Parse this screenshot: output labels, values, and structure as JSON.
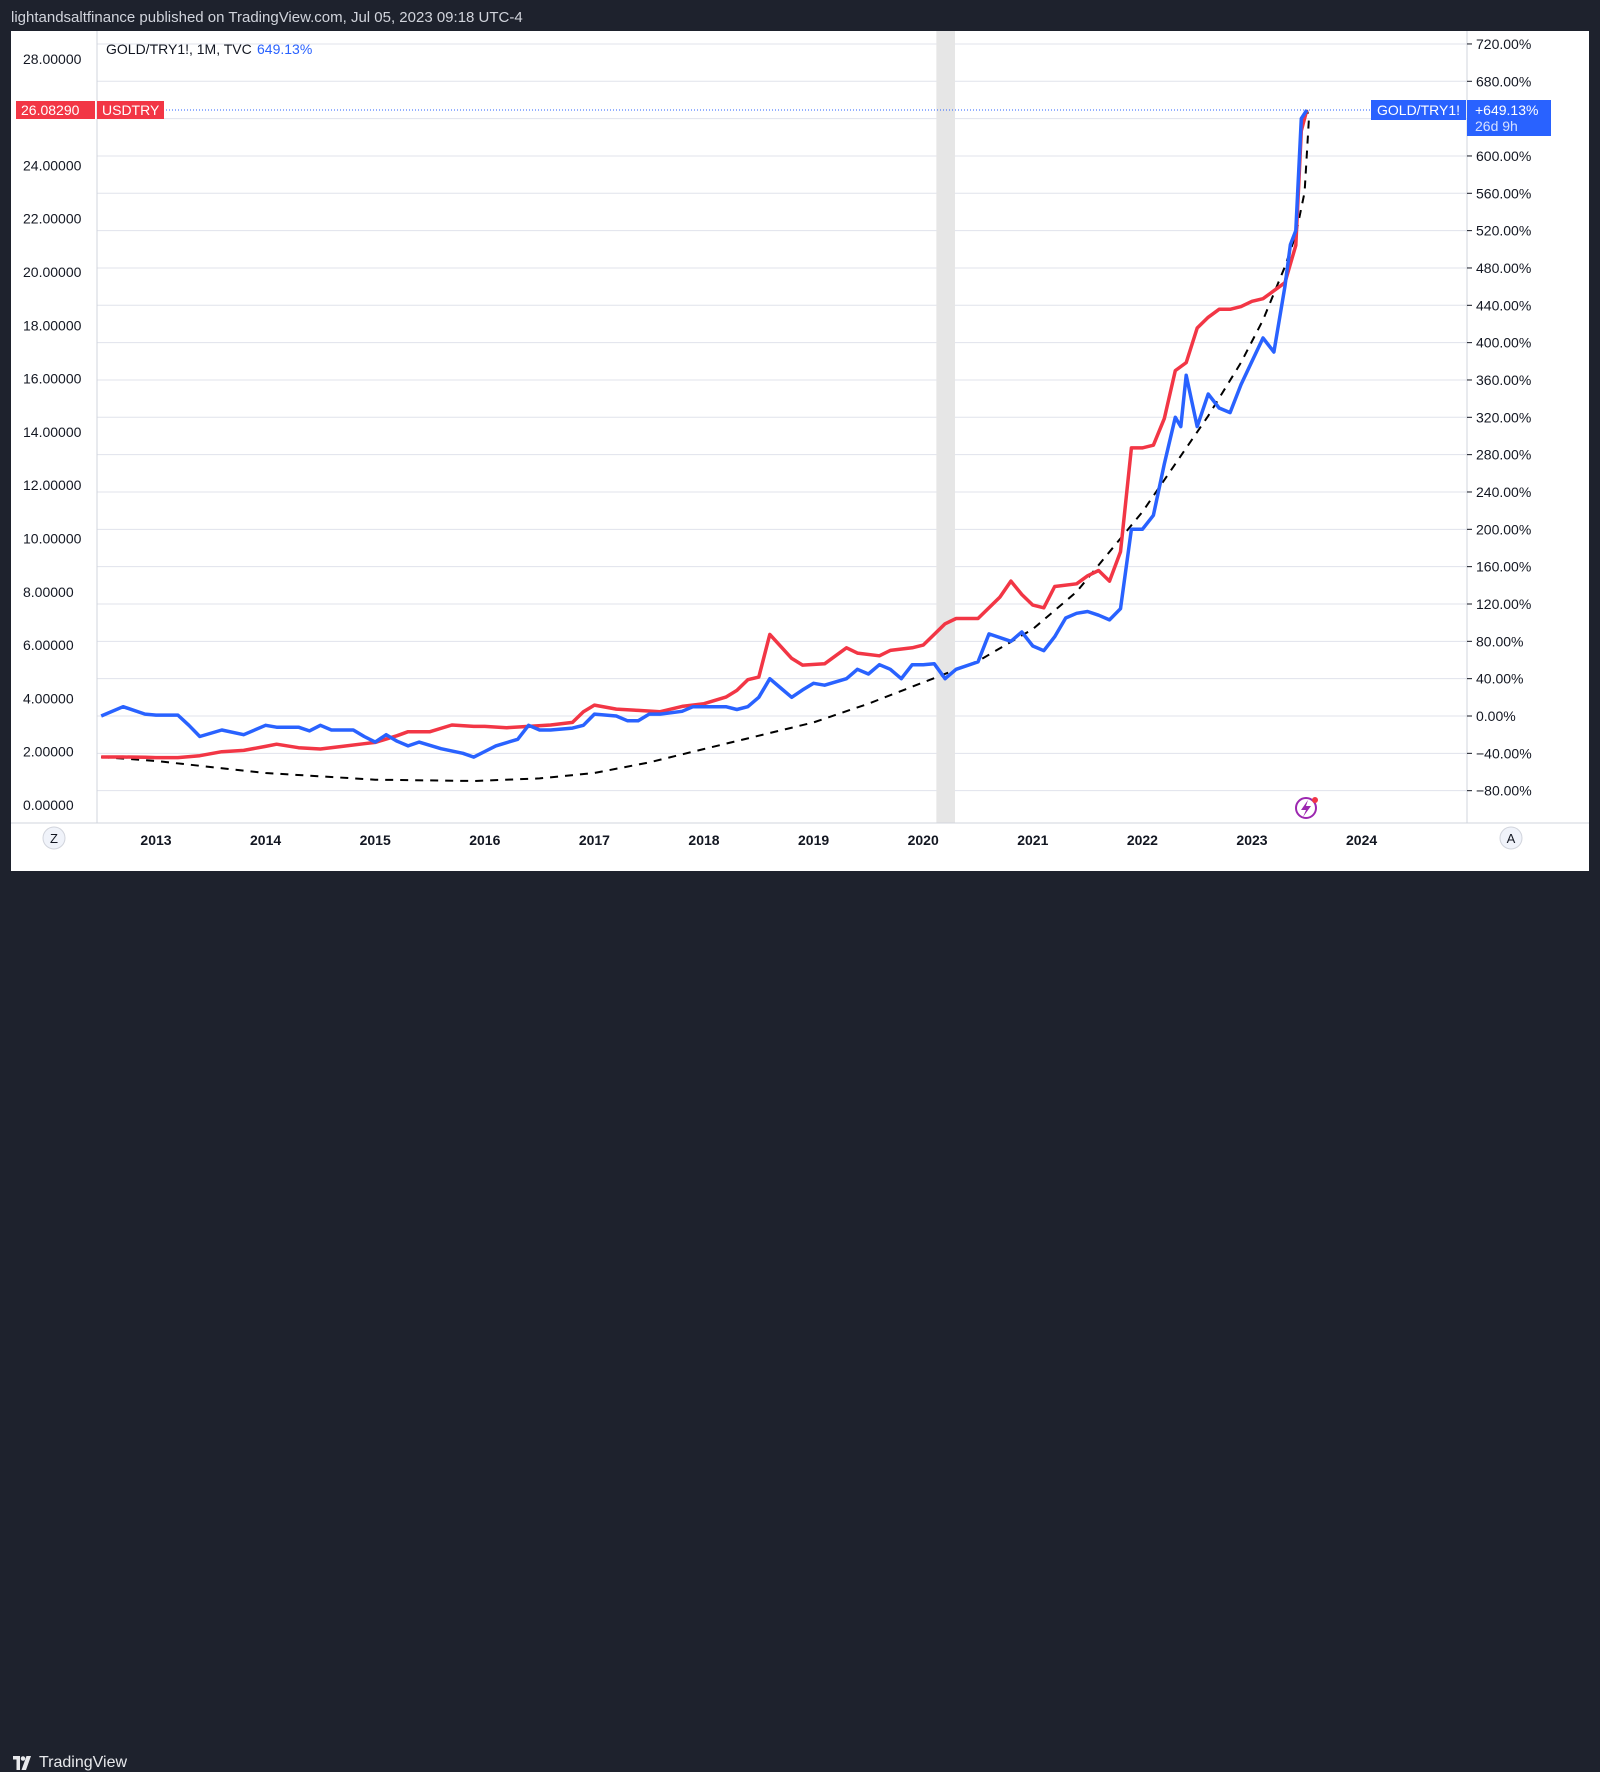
{
  "header": {
    "publisher_line": "lightandsaltfinance published on TradingView.com, Jul 05, 2023 09:18 UTC-4"
  },
  "footer": {
    "brand": "TradingView"
  },
  "legend": {
    "symbol": "GOLD/TRY1!, 1M, TVC",
    "change": "649.13%"
  },
  "buttons": {
    "left_scale": "Z",
    "auto_scale": "A"
  },
  "price_tags": {
    "usdtry_value": "26.08290",
    "usdtry_label": "USDTRY",
    "gold_label": "GOLD/TRY1!",
    "gold_change": "+649.13%",
    "gold_countdown": "26d 9h"
  },
  "colors": {
    "usdtry": "#f23645",
    "gold": "#2962ff",
    "curve": "#000000",
    "shade": "#e6e6e6"
  },
  "chart_data": {
    "type": "line",
    "left_axis": {
      "ticks": [
        "28.00000",
        "24.00000",
        "22.00000",
        "20.00000",
        "18.00000",
        "16.00000",
        "14.00000",
        "12.00000",
        "10.00000",
        "8.00000",
        "6.00000",
        "4.00000",
        "2.00000",
        "0.00000"
      ]
    },
    "right_axis": {
      "ticks": [
        "720.00%",
        "680.00%",
        "600.00%",
        "560.00%",
        "520.00%",
        "480.00%",
        "440.00%",
        "400.00%",
        "360.00%",
        "320.00%",
        "280.00%",
        "240.00%",
        "200.00%",
        "160.00%",
        "120.00%",
        "80.00%",
        "40.00%",
        "0.00%",
        "−40.00%",
        "−80.00%"
      ]
    },
    "x_ticks": [
      "2013",
      "2014",
      "2015",
      "2016",
      "2017",
      "2018",
      "2019",
      "2020",
      "2021",
      "2022",
      "2023",
      "2024"
    ],
    "xlim": [
      2012.5,
      2024.8
    ],
    "ylim_left": [
      0,
      28.5
    ],
    "shaded_period": [
      2020.12,
      2020.29
    ],
    "series": [
      {
        "name": "USDTRY",
        "axis": "left",
        "points": [
          [
            2012.5,
            1.8
          ],
          [
            2012.7,
            1.8
          ],
          [
            2012.9,
            1.79
          ],
          [
            2013.0,
            1.78
          ],
          [
            2013.2,
            1.78
          ],
          [
            2013.4,
            1.85
          ],
          [
            2013.6,
            2.0
          ],
          [
            2013.8,
            2.05
          ],
          [
            2014.0,
            2.2
          ],
          [
            2014.1,
            2.28
          ],
          [
            2014.3,
            2.15
          ],
          [
            2014.5,
            2.1
          ],
          [
            2014.7,
            2.2
          ],
          [
            2014.9,
            2.3
          ],
          [
            2015.0,
            2.35
          ],
          [
            2015.2,
            2.6
          ],
          [
            2015.3,
            2.75
          ],
          [
            2015.5,
            2.75
          ],
          [
            2015.7,
            3.0
          ],
          [
            2015.9,
            2.95
          ],
          [
            2016.0,
            2.95
          ],
          [
            2016.2,
            2.9
          ],
          [
            2016.4,
            2.95
          ],
          [
            2016.6,
            3.0
          ],
          [
            2016.8,
            3.1
          ],
          [
            2016.9,
            3.5
          ],
          [
            2017.0,
            3.75
          ],
          [
            2017.2,
            3.6
          ],
          [
            2017.4,
            3.55
          ],
          [
            2017.6,
            3.5
          ],
          [
            2017.8,
            3.7
          ],
          [
            2018.0,
            3.8
          ],
          [
            2018.2,
            4.05
          ],
          [
            2018.3,
            4.3
          ],
          [
            2018.4,
            4.7
          ],
          [
            2018.5,
            4.8
          ],
          [
            2018.6,
            6.4
          ],
          [
            2018.8,
            5.5
          ],
          [
            2018.9,
            5.25
          ],
          [
            2019.1,
            5.3
          ],
          [
            2019.3,
            5.9
          ],
          [
            2019.4,
            5.7
          ],
          [
            2019.6,
            5.6
          ],
          [
            2019.7,
            5.8
          ],
          [
            2019.9,
            5.9
          ],
          [
            2020.0,
            6.0
          ],
          [
            2020.2,
            6.8
          ],
          [
            2020.3,
            7.0
          ],
          [
            2020.5,
            7.0
          ],
          [
            2020.7,
            7.8
          ],
          [
            2020.8,
            8.4
          ],
          [
            2020.9,
            7.9
          ],
          [
            2021.0,
            7.5
          ],
          [
            2021.1,
            7.4
          ],
          [
            2021.2,
            8.2
          ],
          [
            2021.4,
            8.3
          ],
          [
            2021.5,
            8.6
          ],
          [
            2021.6,
            8.8
          ],
          [
            2021.7,
            8.4
          ],
          [
            2021.8,
            9.5
          ],
          [
            2021.9,
            13.4
          ],
          [
            2022.0,
            13.4
          ],
          [
            2022.1,
            13.5
          ],
          [
            2022.2,
            14.5
          ],
          [
            2022.3,
            16.3
          ],
          [
            2022.4,
            16.6
          ],
          [
            2022.5,
            17.9
          ],
          [
            2022.6,
            18.3
          ],
          [
            2022.7,
            18.6
          ],
          [
            2022.8,
            18.6
          ],
          [
            2022.9,
            18.7
          ],
          [
            2023.0,
            18.9
          ],
          [
            2023.1,
            19.0
          ],
          [
            2023.3,
            19.6
          ],
          [
            2023.4,
            21.0
          ],
          [
            2023.45,
            25.3
          ],
          [
            2023.5,
            26.08
          ]
        ]
      },
      {
        "name": "GOLD/TRY1!",
        "axis": "right",
        "points": [
          [
            2012.5,
            0
          ],
          [
            2012.7,
            10
          ],
          [
            2012.9,
            2
          ],
          [
            2013.0,
            1
          ],
          [
            2013.2,
            1
          ],
          [
            2013.3,
            -10
          ],
          [
            2013.4,
            -22
          ],
          [
            2013.6,
            -15
          ],
          [
            2013.8,
            -20
          ],
          [
            2014.0,
            -10
          ],
          [
            2014.1,
            -12
          ],
          [
            2014.3,
            -12
          ],
          [
            2014.4,
            -16
          ],
          [
            2014.5,
            -10
          ],
          [
            2014.6,
            -15
          ],
          [
            2014.8,
            -15
          ],
          [
            2014.9,
            -22
          ],
          [
            2015.0,
            -28
          ],
          [
            2015.1,
            -20
          ],
          [
            2015.2,
            -27
          ],
          [
            2015.3,
            -32
          ],
          [
            2015.4,
            -28
          ],
          [
            2015.6,
            -35
          ],
          [
            2015.8,
            -40
          ],
          [
            2015.9,
            -44
          ],
          [
            2016.0,
            -38
          ],
          [
            2016.1,
            -32
          ],
          [
            2016.3,
            -25
          ],
          [
            2016.4,
            -10
          ],
          [
            2016.5,
            -15
          ],
          [
            2016.6,
            -15
          ],
          [
            2016.8,
            -13
          ],
          [
            2016.9,
            -10
          ],
          [
            2017.0,
            2
          ],
          [
            2017.2,
            0
          ],
          [
            2017.3,
            -5
          ],
          [
            2017.4,
            -5
          ],
          [
            2017.5,
            2
          ],
          [
            2017.6,
            2
          ],
          [
            2017.8,
            5
          ],
          [
            2017.9,
            10
          ],
          [
            2018.0,
            10
          ],
          [
            2018.2,
            10
          ],
          [
            2018.3,
            7
          ],
          [
            2018.4,
            10
          ],
          [
            2018.5,
            20
          ],
          [
            2018.6,
            40
          ],
          [
            2018.7,
            30
          ],
          [
            2018.8,
            20
          ],
          [
            2018.9,
            28
          ],
          [
            2019.0,
            35
          ],
          [
            2019.1,
            33
          ],
          [
            2019.3,
            40
          ],
          [
            2019.4,
            50
          ],
          [
            2019.5,
            45
          ],
          [
            2019.6,
            55
          ],
          [
            2019.7,
            50
          ],
          [
            2019.8,
            40
          ],
          [
            2019.9,
            55
          ],
          [
            2020.0,
            55
          ],
          [
            2020.1,
            56
          ],
          [
            2020.2,
            40
          ],
          [
            2020.3,
            50
          ],
          [
            2020.5,
            58
          ],
          [
            2020.6,
            88
          ],
          [
            2020.8,
            80
          ],
          [
            2020.9,
            90
          ],
          [
            2021.0,
            75
          ],
          [
            2021.1,
            70
          ],
          [
            2021.2,
            85
          ],
          [
            2021.3,
            105
          ],
          [
            2021.4,
            110
          ],
          [
            2021.5,
            112
          ],
          [
            2021.6,
            108
          ],
          [
            2021.7,
            103
          ],
          [
            2021.8,
            115
          ],
          [
            2021.9,
            200
          ],
          [
            2022.0,
            200
          ],
          [
            2022.1,
            215
          ],
          [
            2022.2,
            270
          ],
          [
            2022.3,
            320
          ],
          [
            2022.35,
            310
          ],
          [
            2022.4,
            365
          ],
          [
            2022.5,
            310
          ],
          [
            2022.6,
            345
          ],
          [
            2022.7,
            330
          ],
          [
            2022.8,
            325
          ],
          [
            2022.9,
            355
          ],
          [
            2023.0,
            380
          ],
          [
            2023.1,
            405
          ],
          [
            2023.2,
            390
          ],
          [
            2023.3,
            460
          ],
          [
            2023.35,
            505
          ],
          [
            2023.4,
            520
          ],
          [
            2023.45,
            640
          ],
          [
            2023.5,
            649.13
          ]
        ]
      }
    ],
    "curve": {
      "style": "dashed",
      "points": [
        [
          2012.5,
          1.8
        ],
        [
          2013.0,
          1.65
        ],
        [
          2014.0,
          1.2
        ],
        [
          2015.0,
          0.95
        ],
        [
          2015.9,
          0.9
        ],
        [
          2016.5,
          1.0
        ],
        [
          2017.0,
          1.2
        ],
        [
          2017.5,
          1.6
        ],
        [
          2018.0,
          2.1
        ],
        [
          2018.5,
          2.6
        ],
        [
          2019.0,
          3.1
        ],
        [
          2019.5,
          3.8
        ],
        [
          2020.0,
          4.6
        ],
        [
          2020.5,
          5.4
        ],
        [
          2021.0,
          6.6
        ],
        [
          2021.4,
          8.0
        ],
        [
          2021.8,
          10.0
        ],
        [
          2022.0,
          11.0
        ],
        [
          2022.3,
          12.8
        ],
        [
          2022.6,
          14.6
        ],
        [
          2022.9,
          16.6
        ],
        [
          2023.1,
          18.2
        ],
        [
          2023.3,
          20.2
        ],
        [
          2023.4,
          21.4
        ],
        [
          2023.48,
          23.0
        ],
        [
          2023.52,
          25.8
        ],
        [
          2023.5,
          26.08
        ]
      ]
    }
  }
}
